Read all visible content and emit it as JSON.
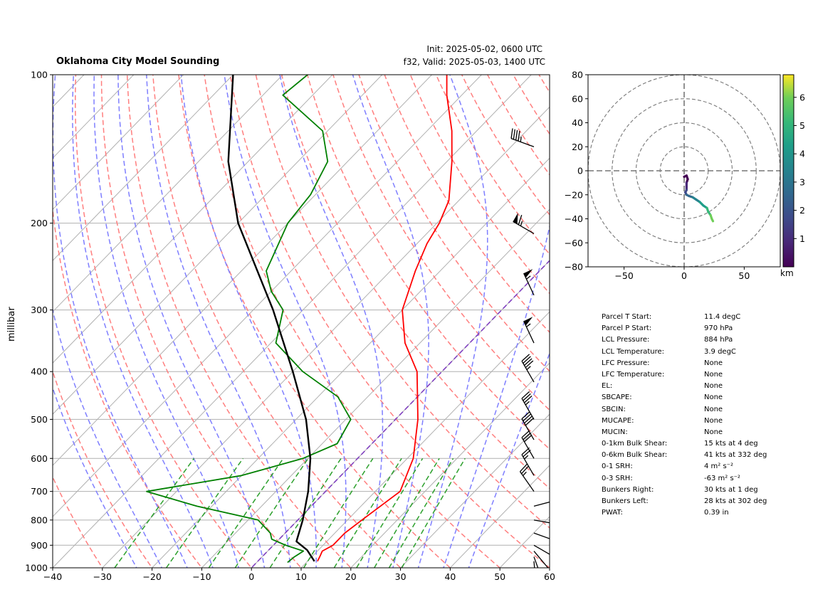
{
  "header": {
    "title": "Oklahoma City Model Sounding",
    "init": "Init: 2025-05-02, 0600 UTC",
    "valid": "f32, Valid: 2025-05-03, 1400 UTC"
  },
  "chart_data": [
    {
      "type": "line",
      "subtype": "skew-t log-p",
      "ylabel": "millibar",
      "xlabel": "",
      "xlim": [
        -40,
        60
      ],
      "ylim": [
        1000,
        100
      ],
      "y_scale": "log",
      "x_ticks": [
        -40,
        -30,
        -20,
        -10,
        0,
        10,
        20,
        30,
        40,
        50,
        60
      ],
      "y_ticks": [
        1000,
        900,
        800,
        700,
        600,
        500,
        400,
        300,
        200,
        100
      ],
      "grid": true,
      "series": [
        {
          "role": "temperature",
          "color": "#ff0000",
          "points": [
            [
              970,
              12.0
            ],
            [
              950,
              11.6
            ],
            [
              925,
              11.0
            ],
            [
              900,
              12.0
            ],
            [
              850,
              12.0
            ],
            [
              800,
              12.9
            ],
            [
              700,
              15.0
            ],
            [
              600,
              11.2
            ],
            [
              500,
              4.5
            ],
            [
              400,
              -5.0
            ],
            [
              350,
              -13.0
            ],
            [
              300,
              -20.0
            ],
            [
              250,
              -25.0
            ],
            [
              220,
              -28.0
            ],
            [
              200,
              -29.5
            ],
            [
              180,
              -32.0
            ],
            [
              150,
              -39.0
            ],
            [
              130,
              -45.0
            ],
            [
              110,
              -53.0
            ],
            [
              100,
              -57.0
            ]
          ]
        },
        {
          "role": "dewpoint",
          "color": "#008000",
          "points": [
            [
              975,
              6.2
            ],
            [
              950,
              6.5
            ],
            [
              925,
              7.2
            ],
            [
              900,
              2.5
            ],
            [
              875,
              -1.5
            ],
            [
              850,
              -3.0
            ],
            [
              800,
              -8.0
            ],
            [
              750,
              -23.0
            ],
            [
              700,
              -36.0
            ],
            [
              650,
              -20.0
            ],
            [
              600,
              -11.0
            ],
            [
              560,
              -7.0
            ],
            [
              500,
              -9.0
            ],
            [
              450,
              -16.0
            ],
            [
              400,
              -28.0
            ],
            [
              350,
              -39.0
            ],
            [
              300,
              -44.0
            ],
            [
              275,
              -50.0
            ],
            [
              250,
              -55.0
            ],
            [
              200,
              -60.0
            ],
            [
              175,
              -61.0
            ],
            [
              150,
              -64.0
            ],
            [
              130,
              -71.0
            ],
            [
              110,
              -86.0
            ],
            [
              100,
              -85.0
            ]
          ]
        },
        {
          "role": "parcel",
          "color": "#000000",
          "points": [
            [
              970,
              11.4
            ],
            [
              920,
              7.7
            ],
            [
              884,
              3.9
            ],
            [
              800,
              1.0
            ],
            [
              700,
              -3.5
            ],
            [
              600,
              -9.5
            ],
            [
              500,
              -18.0
            ],
            [
              400,
              -30.0
            ],
            [
              300,
              -46.0
            ],
            [
              200,
              -70.0
            ],
            [
              150,
              -84.0
            ],
            [
              100,
              -100.0
            ]
          ]
        }
      ],
      "wind_barbs": [
        {
          "p": 970,
          "speed_kt": 15,
          "dir_deg": 175
        },
        {
          "p": 950,
          "speed_kt": 20,
          "dir_deg": 160
        },
        {
          "p": 925,
          "speed_kt": 15,
          "dir_deg": 140
        },
        {
          "p": 900,
          "speed_kt": 15,
          "dir_deg": 120
        },
        {
          "p": 850,
          "speed_kt": 20,
          "dir_deg": 110
        },
        {
          "p": 800,
          "speed_kt": 25,
          "dir_deg": 100
        },
        {
          "p": 750,
          "speed_kt": 30,
          "dir_deg": 75
        },
        {
          "p": 700,
          "speed_kt": 25,
          "dir_deg": 325
        },
        {
          "p": 650,
          "speed_kt": 25,
          "dir_deg": 330
        },
        {
          "p": 600,
          "speed_kt": 30,
          "dir_deg": 330
        },
        {
          "p": 550,
          "speed_kt": 40,
          "dir_deg": 330
        },
        {
          "p": 500,
          "speed_kt": 35,
          "dir_deg": 330
        },
        {
          "p": 420,
          "speed_kt": 45,
          "dir_deg": 330
        },
        {
          "p": 350,
          "speed_kt": 55,
          "dir_deg": 335
        },
        {
          "p": 280,
          "speed_kt": 55,
          "dir_deg": 335
        },
        {
          "p": 210,
          "speed_kt": 65,
          "dir_deg": 300
        },
        {
          "p": 140,
          "speed_kt": 45,
          "dir_deg": 290
        }
      ]
    },
    {
      "type": "line",
      "subtype": "hodograph",
      "xlim": [
        -80,
        80
      ],
      "ylim": [
        -80,
        80
      ],
      "x_ticks": [
        -50,
        0,
        50
      ],
      "y_ticks": [
        -80,
        -60,
        -40,
        -20,
        0,
        20,
        40,
        60,
        80
      ],
      "rings": [
        20,
        40,
        60,
        80
      ],
      "colorbar": {
        "label": "km",
        "ticks": [
          1,
          2,
          3,
          4,
          5,
          6
        ],
        "range": [
          0,
          6.8
        ]
      },
      "points": [
        [
          0,
          -5
        ],
        [
          2,
          -4
        ],
        [
          3,
          -7
        ],
        [
          2,
          -10
        ],
        [
          2,
          -13
        ],
        [
          2,
          -16
        ],
        [
          1,
          -18
        ],
        [
          2,
          -20
        ],
        [
          4,
          -21
        ],
        [
          7,
          -22
        ],
        [
          10,
          -24
        ],
        [
          13,
          -26
        ],
        [
          16,
          -29
        ],
        [
          19,
          -31
        ],
        [
          20,
          -34
        ],
        [
          22,
          -37
        ],
        [
          23,
          -40
        ],
        [
          24,
          -42
        ]
      ]
    }
  ],
  "parameters": [
    {
      "label": "Parcel T Start:",
      "value": "11.4 degC"
    },
    {
      "label": "Parcel P Start:",
      "value": "970 hPa"
    },
    {
      "label": "LCL Pressure:",
      "value": "884 hPa"
    },
    {
      "label": "LCL Temperature:",
      "value": "3.9 degC"
    },
    {
      "label": "LFC Pressure:",
      "value": "None"
    },
    {
      "label": "LFC Temperature:",
      "value": "None"
    },
    {
      "label": "EL:",
      "value": "None"
    },
    {
      "label": "SBCAPE:",
      "value": "None"
    },
    {
      "label": "SBCIN:",
      "value": "None"
    },
    {
      "label": "MUCAPE:",
      "value": "None"
    },
    {
      "label": "MUCIN:",
      "value": "None"
    },
    {
      "label": "0-1km Bulk Shear:",
      "value": "15 kts at 4 deg"
    },
    {
      "label": "0-6km Bulk Shear:",
      "value": "41 kts at 332 deg"
    },
    {
      "label": "0-1 SRH:",
      "value": "4 m² s⁻²"
    },
    {
      "label": "0-3 SRH:",
      "value": "-63 m² s⁻²"
    },
    {
      "label": "Bunkers Right:",
      "value": "30 kts at 1 deg"
    },
    {
      "label": "Bunkers Left:",
      "value": "28 kts at 302 deg"
    },
    {
      "label": "PWAT:",
      "value": "0.39 in"
    }
  ],
  "colors": {
    "temperature": "#ff0000",
    "dewpoint": "#008000",
    "parcel": "#000000",
    "dry_adiabats": "#ff7f7f",
    "moist_adiabats": "#7f7fff",
    "mixing_ratio": "#2ca02c",
    "isotherms": "#b0b0b0",
    "zero_isotherm": "#8040c0"
  }
}
